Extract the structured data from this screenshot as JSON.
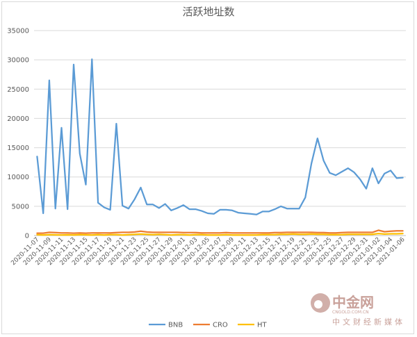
{
  "chart_data": {
    "type": "line",
    "title": "活跃地址数",
    "xlabel": "",
    "ylabel": "",
    "ylim": [
      0,
      35000
    ],
    "yticks": [
      0,
      5000,
      10000,
      15000,
      20000,
      25000,
      30000,
      35000
    ],
    "ytick_labels": [
      "0",
      "5000",
      "10000",
      "15000",
      "20000",
      "25000",
      "30000",
      "35000"
    ],
    "grid": "horizontal",
    "legend_position": "bottom",
    "x_tick_labels": [
      "2020-11-07",
      "2020-11-09",
      "2020-11-11",
      "2020-11-13",
      "2020-11-15",
      "2020-11-17",
      "2020-11-19",
      "2020-11-21",
      "2020-11-23",
      "2020-11-25",
      "2020-11-27",
      "2020-11-29",
      "2020-12-01",
      "2020-12-03",
      "2020-12-05",
      "2020-12-07",
      "2020-12-09",
      "2020-12-11",
      "2020-12-13",
      "2020-12-15",
      "2020-12-17",
      "2020-12-19",
      "2020-12-21",
      "2020-12-23",
      "2020-12-25",
      "2020-12-27",
      "2020-12-29",
      "2020-12-31",
      "2021-01-02",
      "2021-01-04",
      "2021-01-06"
    ],
    "series": [
      {
        "name": "BNB",
        "color": "#5b9bd5",
        "values": [
          13500,
          3800,
          26500,
          4600,
          18400,
          4500,
          29200,
          14000,
          8700,
          30100,
          5600,
          4800,
          4400,
          19100,
          5100,
          4600,
          6200,
          8200,
          5300,
          5300,
          4700,
          5400,
          4300,
          4700,
          5200,
          4500,
          4500,
          4200,
          3800,
          3700,
          4400,
          4400,
          4300,
          3900,
          3800,
          3700,
          3600,
          4100,
          4100,
          4500,
          5000,
          4600,
          4600,
          4600,
          6500,
          12300,
          16600,
          12800,
          10700,
          10300,
          10900,
          11500,
          10800,
          9600,
          8000,
          11500,
          8900,
          10600,
          11100,
          9800,
          9900
        ]
      },
      {
        "name": "CRO",
        "color": "#ed7d31",
        "values": [
          400,
          400,
          550,
          500,
          450,
          450,
          400,
          450,
          400,
          450,
          450,
          450,
          450,
          500,
          550,
          550,
          600,
          750,
          600,
          550,
          550,
          550,
          550,
          550,
          500,
          500,
          500,
          450,
          450,
          450,
          450,
          500,
          450,
          450,
          450,
          450,
          450,
          450,
          450,
          500,
          500,
          550,
          550,
          550,
          550,
          550,
          500,
          500,
          450,
          450,
          500,
          550,
          550,
          550,
          550,
          550,
          900,
          650,
          750,
          800,
          800
        ]
      },
      {
        "name": "HT",
        "color": "#ffc000",
        "values": [
          150,
          100,
          150,
          120,
          100,
          120,
          100,
          150,
          120,
          100,
          150,
          100,
          150,
          150,
          100,
          150,
          200,
          250,
          200,
          150,
          200,
          150,
          100,
          150,
          150,
          100,
          150,
          150,
          100,
          100,
          100,
          150,
          100,
          100,
          100,
          100,
          100,
          150,
          150,
          150,
          200,
          200,
          250,
          200,
          200,
          250,
          200,
          200,
          150,
          150,
          150,
          200,
          200,
          200,
          200,
          200,
          350,
          250,
          300,
          300,
          350
        ]
      }
    ]
  },
  "watermark": {
    "name": "中金网",
    "tagline": "中文财经新媒体",
    "site": "CNGOLD.COM.CN",
    "color": "#c9a19a"
  }
}
